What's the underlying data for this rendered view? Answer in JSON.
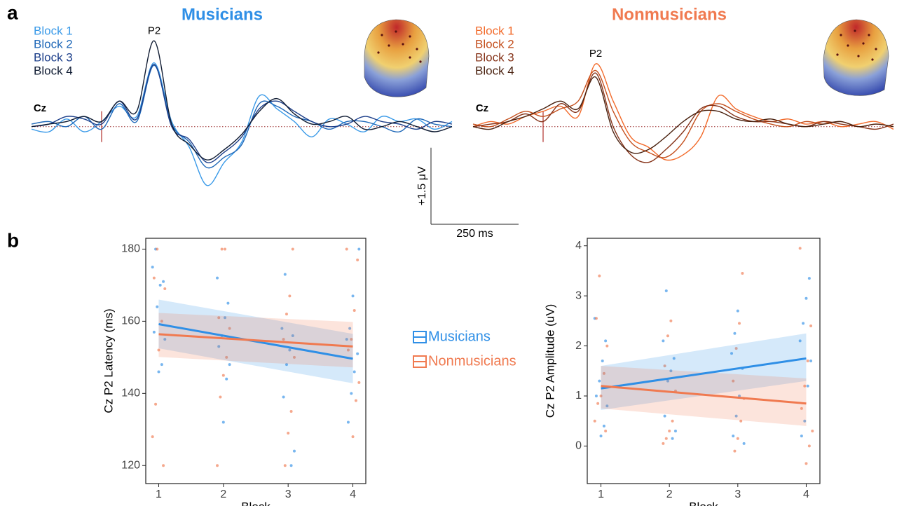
{
  "panel_labels": [
    "a",
    "b"
  ],
  "chart_data": [
    {
      "type": "line",
      "title": "Musicians",
      "title_color": "#2f8fe6",
      "annotations": [
        "Cz",
        "P2"
      ],
      "x": [
        -200,
        -150,
        -100,
        -50,
        0,
        50,
        100,
        150,
        200,
        250,
        300,
        350,
        400,
        450,
        500,
        550,
        600,
        650,
        700,
        750,
        800,
        850,
        900,
        950,
        1000
      ],
      "xlim": [
        -200,
        1000
      ],
      "ylim": [
        -1.5,
        2.0
      ],
      "scale_bar": {
        "x": 250,
        "x_label": "250 ms",
        "y": 1.5,
        "y_label": "+1.5 μV"
      },
      "series": [
        {
          "name": "Block 1",
          "color": "#3a9ae8",
          "values": [
            -0.05,
            -0.1,
            0.15,
            -0.1,
            0.1,
            0.4,
            0.2,
            1.25,
            0.1,
            -0.4,
            -1.15,
            -0.7,
            -0.3,
            0.6,
            0.35,
            0.1,
            -0.2,
            0.15,
            0.05,
            -0.1,
            0.2,
            0.1,
            0.15,
            -0.05,
            0.1
          ]
        },
        {
          "name": "Block 2",
          "color": "#1f68b8",
          "values": [
            0.05,
            0.1,
            0.0,
            0.2,
            -0.05,
            0.45,
            0.1,
            1.2,
            0.05,
            -0.3,
            -0.8,
            -0.6,
            -0.35,
            0.45,
            0.4,
            0.2,
            0.1,
            -0.05,
            0.1,
            0.1,
            0.0,
            -0.1,
            0.15,
            0.05,
            0.0
          ]
        },
        {
          "name": "Block 3",
          "color": "#1d3f8a",
          "values": [
            0.0,
            0.05,
            0.2,
            0.15,
            0.05,
            0.5,
            0.15,
            1.22,
            0.0,
            -0.25,
            -0.7,
            -0.5,
            -0.2,
            0.35,
            0.5,
            0.3,
            0.1,
            0.0,
            0.05,
            0.2,
            0.1,
            0.05,
            -0.05,
            0.1,
            0.05
          ]
        },
        {
          "name": "Block 4",
          "color": "#101c33",
          "values": [
            0.0,
            0.05,
            0.1,
            0.2,
            0.1,
            0.5,
            0.3,
            1.68,
            0.05,
            -0.35,
            -0.65,
            -0.45,
            -0.15,
            0.3,
            0.55,
            0.25,
            0.05,
            0.1,
            0.2,
            -0.05,
            0.0,
            0.1,
            0.0,
            -0.1,
            0.0
          ]
        }
      ]
    },
    {
      "type": "line",
      "title": "Nonmusicians",
      "title_color": "#f07a50",
      "annotations": [
        "Cz",
        "P2"
      ],
      "x": [
        -200,
        -150,
        -100,
        -50,
        0,
        50,
        100,
        150,
        200,
        250,
        300,
        350,
        400,
        450,
        500,
        550,
        600,
        650,
        700,
        750,
        800,
        850,
        900,
        950,
        1000
      ],
      "xlim": [
        -200,
        1000
      ],
      "ylim": [
        -1.5,
        2.0
      ],
      "series": [
        {
          "name": "Block 1",
          "color": "#f26a2a",
          "values": [
            0.0,
            0.1,
            0.05,
            0.2,
            0.3,
            0.4,
            0.2,
            1.23,
            0.5,
            -0.2,
            -0.4,
            -0.65,
            -0.55,
            -0.2,
            0.6,
            0.35,
            0.2,
            0.1,
            0.15,
            0.05,
            0.1,
            0.0,
            0.05,
            0.1,
            -0.05
          ]
        },
        {
          "name": "Block 2",
          "color": "#c4501e",
          "values": [
            0.05,
            0.0,
            0.15,
            0.3,
            0.2,
            0.35,
            0.5,
            1.1,
            0.3,
            -0.3,
            -0.5,
            -0.6,
            -0.3,
            0.3,
            0.45,
            0.3,
            0.15,
            0.05,
            0.0,
            0.1,
            0.05,
            0.1,
            0.0,
            0.05,
            0.0
          ]
        },
        {
          "name": "Block 3",
          "color": "#86341a",
          "values": [
            0.0,
            0.05,
            0.1,
            0.25,
            0.1,
            0.45,
            0.3,
            1.05,
            0.0,
            -0.55,
            -0.7,
            -0.45,
            -0.1,
            0.35,
            0.4,
            0.2,
            0.1,
            0.1,
            0.05,
            0.0,
            0.1,
            0.05,
            0.0,
            -0.05,
            0.05
          ]
        },
        {
          "name": "Block 4",
          "color": "#4a2210",
          "values": [
            0.0,
            -0.05,
            0.1,
            0.2,
            0.35,
            0.5,
            0.35,
            0.97,
            -0.1,
            -0.5,
            -0.45,
            -0.2,
            0.1,
            0.3,
            0.3,
            0.15,
            0.1,
            0.15,
            0.05,
            0.0,
            0.05,
            0.1,
            0.0,
            0.05,
            0.0
          ]
        }
      ]
    },
    {
      "type": "scatter",
      "x_label": "Block",
      "y_label": "Cz P2 Latency (ms)",
      "xlim": [
        0.8,
        4.2
      ],
      "ylim": [
        115,
        183
      ],
      "xticks": [
        1,
        2,
        3,
        4
      ],
      "yticks": [
        120,
        140,
        160,
        180
      ],
      "series": [
        {
          "name": "Musicians",
          "color": "#2f8fe6",
          "x": [
            1,
            1,
            1,
            1,
            1,
            1,
            1,
            1,
            1,
            2,
            2,
            2,
            2,
            2,
            2,
            2,
            2,
            3,
            3,
            3,
            3,
            3,
            3,
            3,
            3,
            4,
            4,
            4,
            4,
            4,
            4,
            4,
            4
          ],
          "values": [
            175,
            171,
            170,
            164,
            157,
            155,
            148,
            146,
            180,
            172,
            165,
            161,
            156,
            153,
            148,
            144,
            132,
            173,
            158,
            156,
            152,
            148,
            139,
            124,
            120,
            167,
            158,
            155,
            151,
            146,
            140,
            132,
            180
          ]
        },
        {
          "name": "Nonmusicians",
          "color": "#f07a50",
          "x": [
            1,
            1,
            1,
            1,
            1,
            1,
            1,
            1,
            2,
            2,
            2,
            2,
            2,
            2,
            2,
            2,
            3,
            3,
            3,
            3,
            3,
            3,
            3,
            3,
            4,
            4,
            4,
            4,
            4,
            4,
            4,
            4
          ],
          "values": [
            180,
            172,
            169,
            160,
            152,
            137,
            128,
            120,
            180,
            180,
            161,
            158,
            150,
            145,
            139,
            120,
            180,
            167,
            162,
            155,
            150,
            135,
            129,
            120,
            180,
            177,
            163,
            155,
            152,
            143,
            138,
            128
          ]
        }
      ],
      "fits": [
        {
          "x": [
            1,
            4
          ],
          "values": [
            159.2,
            149.6
          ],
          "lower": [
            152.5,
            142.8
          ],
          "upper": [
            166,
            156.5
          ]
        },
        {
          "x": [
            1,
            4
          ],
          "values": [
            156.4,
            153.0
          ],
          "lower": [
            150.1,
            147.2
          ],
          "upper": [
            162.3,
            159.8
          ]
        }
      ]
    },
    {
      "type": "scatter",
      "x_label": "Block",
      "y_label": "Cz P2 Amplitude (uV)",
      "xlim": [
        0.8,
        4.2
      ],
      "ylim": [
        -0.75,
        4.15
      ],
      "xticks": [
        1,
        2,
        3,
        4
      ],
      "yticks": [
        0,
        1,
        2,
        3,
        4
      ],
      "series": [
        {
          "color": "#2f8fe6",
          "x": [
            1,
            1,
            1,
            1,
            1,
            1,
            1,
            1,
            2,
            2,
            2,
            2,
            2,
            2,
            2,
            2,
            3,
            3,
            3,
            3,
            3,
            3,
            3,
            3,
            4,
            4,
            4,
            4,
            4,
            4,
            4,
            4
          ],
          "values": [
            2.55,
            2.1,
            1.7,
            1.3,
            1.0,
            0.8,
            0.4,
            0.2,
            3.1,
            2.1,
            1.75,
            1.5,
            1.3,
            0.6,
            0.3,
            0.15,
            2.7,
            2.25,
            1.85,
            1.55,
            1.0,
            0.6,
            0.2,
            0.05,
            3.35,
            2.95,
            2.45,
            2.1,
            1.7,
            1.2,
            0.5,
            0.2
          ]
        },
        {
          "color": "#f07a50",
          "x": [
            1,
            1,
            1,
            1,
            1,
            1,
            1,
            1,
            2,
            2,
            2,
            2,
            2,
            2,
            2,
            2,
            3,
            3,
            3,
            3,
            3,
            3,
            3,
            3,
            4,
            4,
            4,
            4,
            4,
            4,
            4,
            4
          ],
          "values": [
            3.4,
            2.55,
            2.0,
            1.45,
            1.0,
            0.85,
            0.5,
            0.3,
            2.5,
            2.2,
            1.6,
            1.1,
            0.5,
            0.3,
            0.15,
            0.05,
            3.45,
            2.45,
            1.95,
            1.3,
            0.95,
            0.5,
            0.15,
            -0.1,
            3.95,
            2.4,
            1.7,
            1.2,
            0.75,
            0.3,
            0.0,
            -0.35
          ]
        }
      ],
      "fits": [
        {
          "x": [
            1,
            4
          ],
          "values": [
            1.15,
            1.75
          ],
          "lower": [
            0.72,
            1.3
          ],
          "upper": [
            1.6,
            2.25
          ]
        },
        {
          "x": [
            1,
            4
          ],
          "values": [
            1.2,
            0.85
          ],
          "lower": [
            0.75,
            0.4
          ],
          "upper": [
            1.6,
            1.35
          ]
        }
      ]
    }
  ]
}
